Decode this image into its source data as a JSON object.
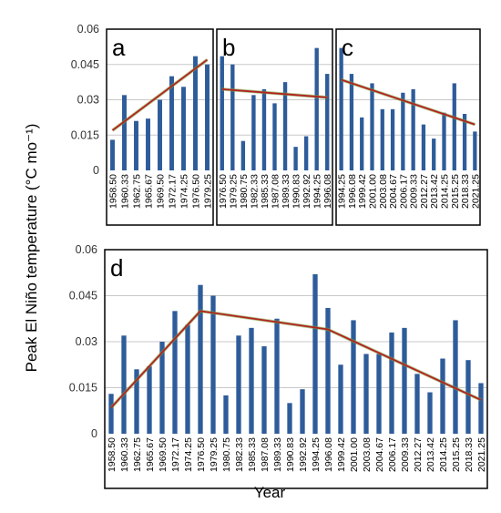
{
  "figure": {
    "ylabel": "Peak El Niño temperature (°C mo⁻¹)",
    "xlabel": "Year"
  },
  "colors": {
    "bar": "#2E5C9A",
    "trend": "#B22222",
    "trend_halo": "#7FA23A",
    "grid": "#C8C8C8",
    "frame": "#000000"
  },
  "chart_data": [
    {
      "panel": "a",
      "type": "bar",
      "categories": [
        "1958.50",
        "1960.33",
        "1962.75",
        "1965.67",
        "1969.50",
        "1972.17",
        "1974.25",
        "1976.50",
        "1979.25"
      ],
      "values": [
        0.013,
        0.032,
        0.021,
        0.022,
        0.03,
        0.04,
        0.0355,
        0.0485,
        0.045
      ],
      "ylim": [
        0,
        0.06
      ],
      "yticks": [
        "0",
        "0.015",
        "0.03",
        "0.045",
        "0.06"
      ],
      "trend": [
        [
          0,
          0.017
        ],
        [
          8,
          0.047
        ]
      ],
      "xlabels_shown": [
        "1958.50",
        "1960.33",
        "1962.75",
        "1965.67",
        "1969.50",
        "1972.17",
        "1974.25",
        "1976.50",
        "1979.25"
      ],
      "grid": true
    },
    {
      "panel": "b",
      "type": "bar",
      "categories": [
        "1976.50",
        "1979.25",
        "1980.75",
        "1982.33",
        "1985.33",
        "1987.08",
        "1989.33",
        "1990.83",
        "1992.92",
        "1994.25",
        "1996.08"
      ],
      "values": [
        0.0485,
        0.045,
        0.0125,
        0.032,
        0.0345,
        0.0285,
        0.0375,
        0.01,
        0.0145,
        0.052,
        0.041
      ],
      "ylim": [
        0,
        0.06
      ],
      "trend": [
        [
          0,
          0.0345
        ],
        [
          10,
          0.031
        ]
      ],
      "xlabels_shown": [
        "1976.50",
        "1979.25",
        "1980.75",
        "1982.33",
        "1985.33",
        "1987.08",
        "1989.33",
        "1990.83",
        "1992.92",
        "1994.25",
        "1996.08"
      ],
      "grid": true
    },
    {
      "panel": "c",
      "type": "bar",
      "categories": [
        "1994.25",
        "1996.08",
        "1999.42",
        "2001.00",
        "2003.08",
        "2004.67",
        "2006.17",
        "2009.33",
        "2012.27",
        "2013.42",
        "2014.25",
        "2015.25",
        "2018.33",
        "2021.25"
      ],
      "values": [
        0.052,
        0.041,
        0.0225,
        0.037,
        0.026,
        0.026,
        0.033,
        0.0345,
        0.0195,
        0.0135,
        0.0245,
        0.037,
        0.024,
        0.0165
      ],
      "ylim": [
        0,
        0.06
      ],
      "trend": [
        [
          0,
          0.0385
        ],
        [
          13,
          0.0195
        ]
      ],
      "xlabels_shown": [
        "1994.25",
        "1996.08",
        "1999.42",
        "2001.00",
        "2003.08",
        "2004.67",
        "2006.17",
        "2009.33",
        "2012.27",
        "2013.42",
        "2014.25",
        "2015.25",
        "2018.33",
        "2021.25"
      ],
      "grid": true
    },
    {
      "panel": "d",
      "type": "bar",
      "categories": [
        "1958.50",
        "1960.33",
        "1962.75",
        "1965.67",
        "1969.50",
        "1972.17",
        "1974.25",
        "1976.50",
        "1979.25",
        "1980.75",
        "1982.33",
        "1985.33",
        "1987.08",
        "1989.33",
        "1990.83",
        "1992.92",
        "1994.25",
        "1996.08",
        "1999.42",
        "2001.00",
        "2003.08",
        "2004.67",
        "2006.17",
        "2009.33",
        "2012.27",
        "2013.42",
        "2014.25",
        "2015.25",
        "2018.33",
        "2021.25"
      ],
      "values": [
        0.013,
        0.032,
        0.021,
        0.022,
        0.03,
        0.04,
        0.0355,
        0.0485,
        0.045,
        0.0125,
        0.032,
        0.0345,
        0.0285,
        0.0375,
        0.01,
        0.0145,
        0.052,
        0.041,
        0.0225,
        0.037,
        0.026,
        0.026,
        0.033,
        0.0345,
        0.0195,
        0.0135,
        0.0245,
        0.037,
        0.024,
        0.0165
      ],
      "ylim": [
        0,
        0.06
      ],
      "yticks": [
        "0",
        "0.015",
        "0.03",
        "0.045",
        "0.06"
      ],
      "trend": [
        [
          0,
          0.0085
        ],
        [
          7,
          0.04
        ],
        [
          17,
          0.034
        ],
        [
          29,
          0.011
        ]
      ],
      "xlabels_shown": [
        "1958.50",
        "1960.33",
        "1962.75",
        "1965.67",
        "1969.50",
        "1972.17",
        "1974.25",
        "1976.50",
        "1979.25",
        "1980.75",
        "1982.33",
        "1985.33",
        "1987.08",
        "1989.33",
        "1990.83",
        "1992.92",
        "1994.25",
        "1996.08",
        "1999.42",
        "2001.00",
        "2003.08",
        "2004.67",
        "2006.17",
        "2009.33",
        "2012.27",
        "2013.42",
        "2014.25",
        "2015.25",
        "2018.33",
        "2021.25"
      ],
      "grid": true
    }
  ]
}
